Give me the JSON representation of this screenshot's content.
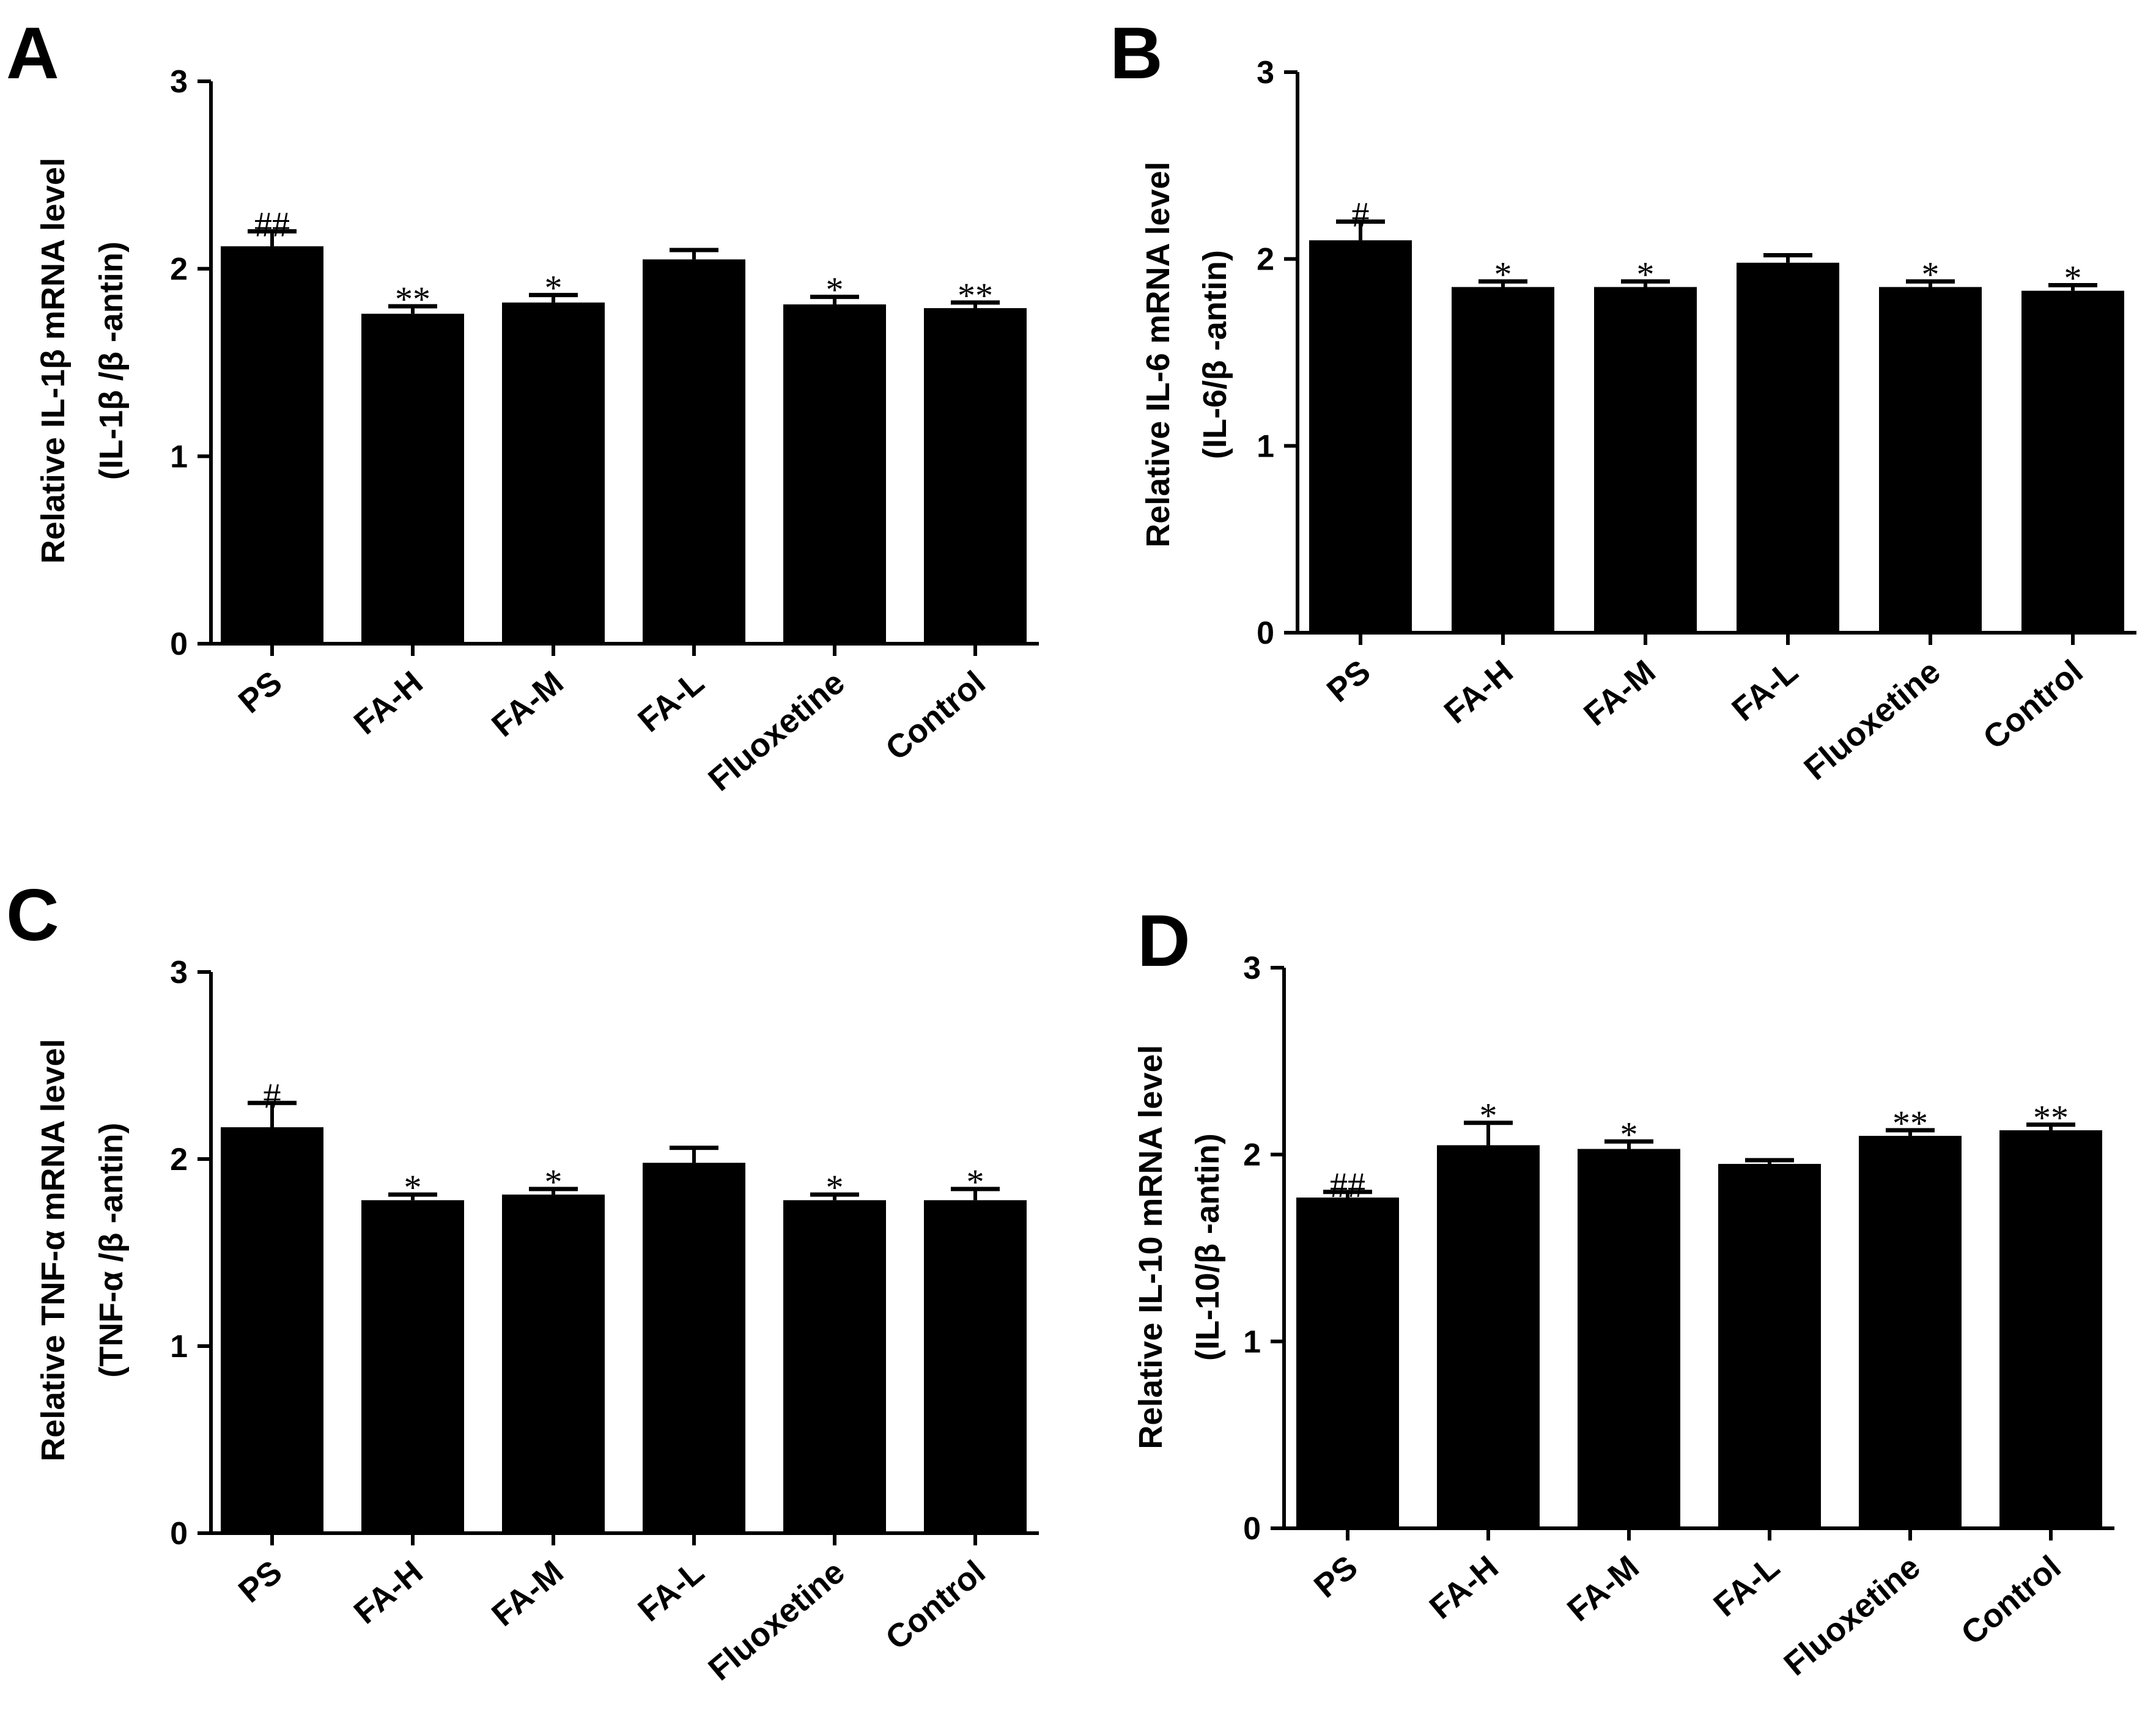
{
  "chart_data": [
    {
      "type": "bar",
      "panel": "A",
      "categories": [
        "PS",
        "FA-H",
        "FA-M",
        "FA-L",
        "Fluoxetine",
        "Control"
      ],
      "values": [
        2.12,
        1.76,
        1.82,
        2.05,
        1.81,
        1.79
      ],
      "errors": [
        0.08,
        0.04,
        0.04,
        0.05,
        0.04,
        0.03
      ],
      "annotations": [
        "##",
        "**",
        "*",
        "",
        "*",
        "**"
      ],
      "ylabel_line1": "Relative IL-1β  mRNA level",
      "ylabel_line2": "(IL-1β /β -antin)",
      "ylim": [
        0,
        3
      ],
      "yticks": [
        "0",
        "1",
        "2",
        "3"
      ],
      "bar_color": "#000000"
    },
    {
      "type": "bar",
      "panel": "B",
      "categories": [
        "PS",
        "FA-H",
        "FA-M",
        "FA-L",
        "Fluoxetine",
        "Control"
      ],
      "values": [
        2.1,
        1.85,
        1.85,
        1.98,
        1.85,
        1.83
      ],
      "errors": [
        0.1,
        0.03,
        0.03,
        0.04,
        0.03,
        0.03
      ],
      "annotations": [
        "#",
        "*",
        "*",
        "",
        "*",
        "*"
      ],
      "ylabel_line1": "Relative IL-6 mRNA level",
      "ylabel_line2": "(IL-6/β -antin)",
      "ylim": [
        0,
        3
      ],
      "yticks": [
        "0",
        "1",
        "2",
        "3"
      ],
      "bar_color": "#000000"
    },
    {
      "type": "bar",
      "panel": "C",
      "categories": [
        "PS",
        "FA-H",
        "FA-M",
        "FA-L",
        "Fluoxetine",
        "Control"
      ],
      "values": [
        2.17,
        1.78,
        1.81,
        1.98,
        1.78,
        1.78
      ],
      "errors": [
        0.13,
        0.03,
        0.03,
        0.08,
        0.03,
        0.06
      ],
      "annotations": [
        "#",
        "*",
        "*",
        "",
        "*",
        "*"
      ],
      "ylabel_line1": "Relative TNF-α  mRNA level",
      "ylabel_line2": "(TNF-α /β -antin)",
      "ylim": [
        0,
        3
      ],
      "yticks": [
        "0",
        "1",
        "2",
        "3"
      ],
      "bar_color": "#000000"
    },
    {
      "type": "bar",
      "panel": "D",
      "categories": [
        "PS",
        "FA-H",
        "FA-M",
        "FA-L",
        "Fluoxetine",
        "Control"
      ],
      "values": [
        1.77,
        2.05,
        2.03,
        1.95,
        2.1,
        2.13
      ],
      "errors": [
        0.03,
        0.12,
        0.04,
        0.02,
        0.03,
        0.03
      ],
      "annotations": [
        "##",
        "*",
        "*",
        "",
        "**",
        "**"
      ],
      "ylabel_line1": "Relative IL-10 mRNA level",
      "ylabel_line2": "(IL-10/β -antin)",
      "ylim": [
        0,
        3
      ],
      "yticks": [
        "0",
        "1",
        "2",
        "3"
      ],
      "bar_color": "#000000"
    }
  ]
}
